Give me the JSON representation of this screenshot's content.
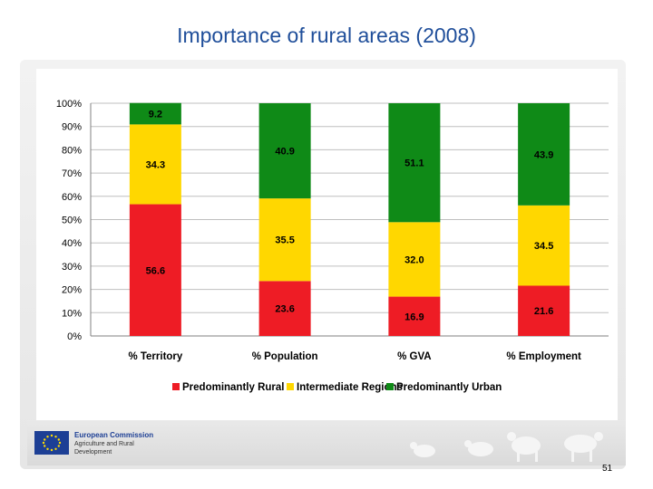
{
  "slide": {
    "title": "Importance of rural areas (2008)",
    "page_number": "51"
  },
  "footer": {
    "org_name": "European Commission",
    "org_dept": "Agriculture and Rural Development",
    "logo_icon": "eu-flag-icon"
  },
  "colors": {
    "rural": "#ee1c25",
    "intermediate": "#ffd700",
    "urban": "#0f8a17",
    "title": "#1f4e9a"
  },
  "chart_data": {
    "type": "bar",
    "stacked": true,
    "categories": [
      "% Territory",
      "% Population",
      "% GVA",
      "% Employment"
    ],
    "series": [
      {
        "name": "Predominantly Rural",
        "values": [
          56.6,
          23.6,
          16.9,
          21.6
        ]
      },
      {
        "name": "Intermediate Regions",
        "values": [
          34.3,
          35.5,
          32.0,
          34.5
        ]
      },
      {
        "name": "Predominantly Urban",
        "values": [
          9.2,
          40.9,
          51.1,
          43.9
        ]
      }
    ],
    "data_labels": [
      [
        "56.6",
        "23.6",
        "16.9",
        "21.6"
      ],
      [
        "34.3",
        "35.5",
        "32.0",
        "34.5"
      ],
      [
        "9.2",
        "40.9",
        "51.1",
        "43.9"
      ]
    ],
    "y_ticks": [
      "0%",
      "10%",
      "20%",
      "30%",
      "40%",
      "50%",
      "60%",
      "70%",
      "80%",
      "90%",
      "100%"
    ],
    "ylim": [
      0,
      100
    ],
    "legend_position": "bottom",
    "grid": true
  }
}
